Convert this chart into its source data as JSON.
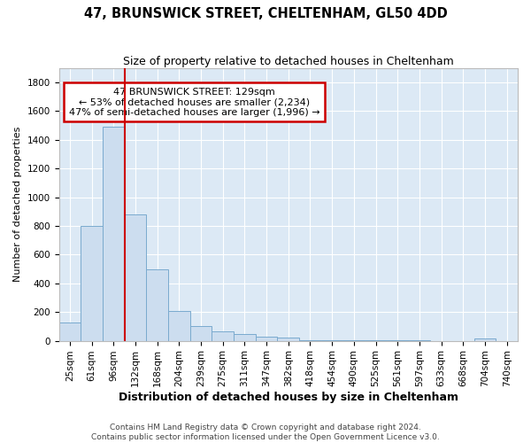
{
  "title1": "47, BRUNSWICK STREET, CHELTENHAM, GL50 4DD",
  "title2": "Size of property relative to detached houses in Cheltenham",
  "xlabel": "Distribution of detached houses by size in Cheltenham",
  "ylabel": "Number of detached properties",
  "footer1": "Contains HM Land Registry data © Crown copyright and database right 2024.",
  "footer2": "Contains public sector information licensed under the Open Government Licence v3.0.",
  "bin_labels": [
    "25sqm",
    "61sqm",
    "96sqm",
    "132sqm",
    "168sqm",
    "204sqm",
    "239sqm",
    "275sqm",
    "311sqm",
    "347sqm",
    "382sqm",
    "418sqm",
    "454sqm",
    "490sqm",
    "525sqm",
    "561sqm",
    "597sqm",
    "633sqm",
    "668sqm",
    "704sqm",
    "740sqm"
  ],
  "bar_heights": [
    125,
    800,
    1490,
    880,
    500,
    205,
    105,
    65,
    45,
    30,
    20,
    5,
    5,
    2,
    2,
    2,
    2,
    0,
    0,
    18,
    0
  ],
  "bar_color": "#ccddef",
  "bar_edge_color": "#7aaace",
  "background_color": "#dce9f5",
  "grid_color": "#ffffff",
  "annotation_text1": "47 BRUNSWICK STREET: 129sqm",
  "annotation_text2": "← 53% of detached houses are smaller (2,234)",
  "annotation_text3": "47% of semi-detached houses are larger (1,996) →",
  "annotation_box_facecolor": "#ffffff",
  "annotation_box_edgecolor": "#cc0000",
  "red_line_color": "#cc0000",
  "red_line_x": 2.5,
  "ylim": [
    0,
    1900
  ],
  "yticks": [
    0,
    200,
    400,
    600,
    800,
    1000,
    1200,
    1400,
    1600,
    1800
  ],
  "title1_fontsize": 10.5,
  "title2_fontsize": 9,
  "xlabel_fontsize": 9,
  "ylabel_fontsize": 8,
  "tick_fontsize": 7.5,
  "footer_fontsize": 6.5
}
